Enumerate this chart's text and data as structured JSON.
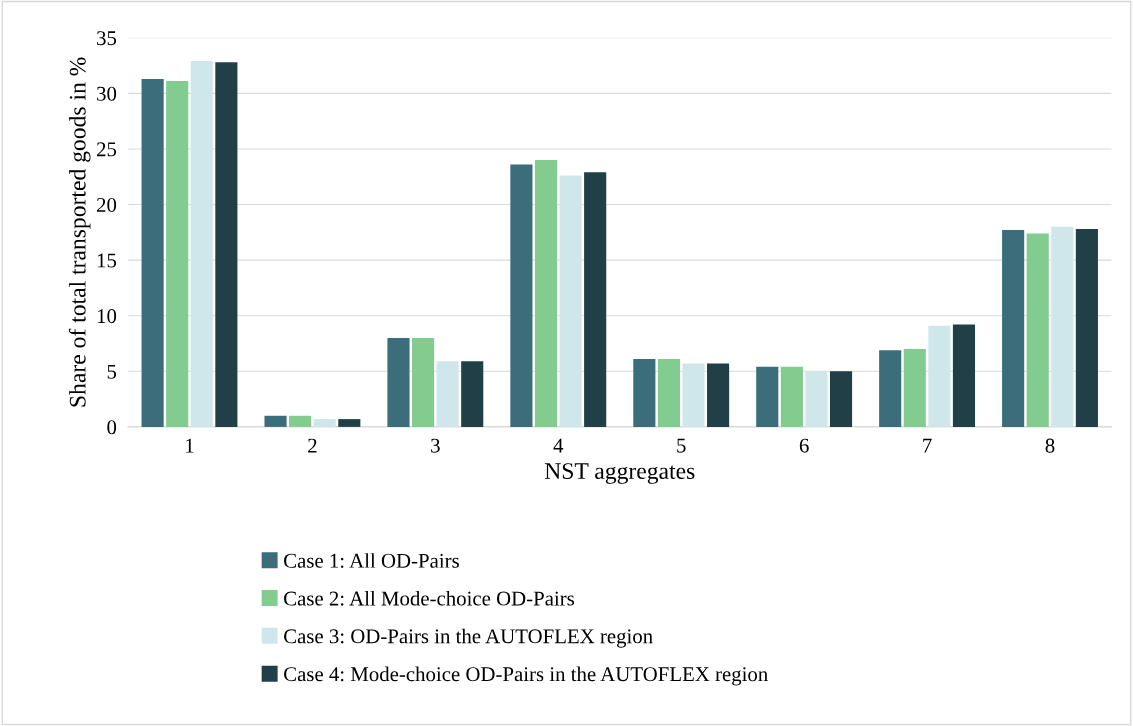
{
  "chart_data": {
    "type": "bar",
    "xlabel": "NST aggregates",
    "ylabel": "Share of total transported goods in %",
    "categories": [
      "1",
      "2",
      "3",
      "4",
      "5",
      "6",
      "7",
      "8"
    ],
    "series": [
      {
        "name": "Case 1: All OD-Pairs",
        "color": "#3b6e7a",
        "values": [
          31.3,
          1.0,
          8.0,
          23.6,
          6.1,
          5.4,
          6.9,
          17.7
        ]
      },
      {
        "name": "Case 2: All Mode-choice OD-Pairs",
        "color": "#82cc8f",
        "values": [
          31.1,
          1.0,
          8.0,
          24.0,
          6.1,
          5.4,
          7.0,
          17.4
        ]
      },
      {
        "name": "Case 3: OD-Pairs in the AUTOFLEX region",
        "color": "#cfe7ea",
        "values": [
          32.9,
          0.7,
          5.9,
          22.6,
          5.7,
          5.0,
          9.1,
          18.0
        ]
      },
      {
        "name": "Case 4: Mode-choice OD-Pairs in the AUTOFLEX region",
        "color": "#213f47",
        "values": [
          32.8,
          0.7,
          5.9,
          22.9,
          5.7,
          5.0,
          9.2,
          17.8
        ]
      }
    ],
    "ylim": [
      0,
      35
    ],
    "yticks": [
      0,
      5,
      10,
      15,
      20,
      25,
      30,
      35
    ],
    "grid": "y",
    "legend": "bottom"
  }
}
